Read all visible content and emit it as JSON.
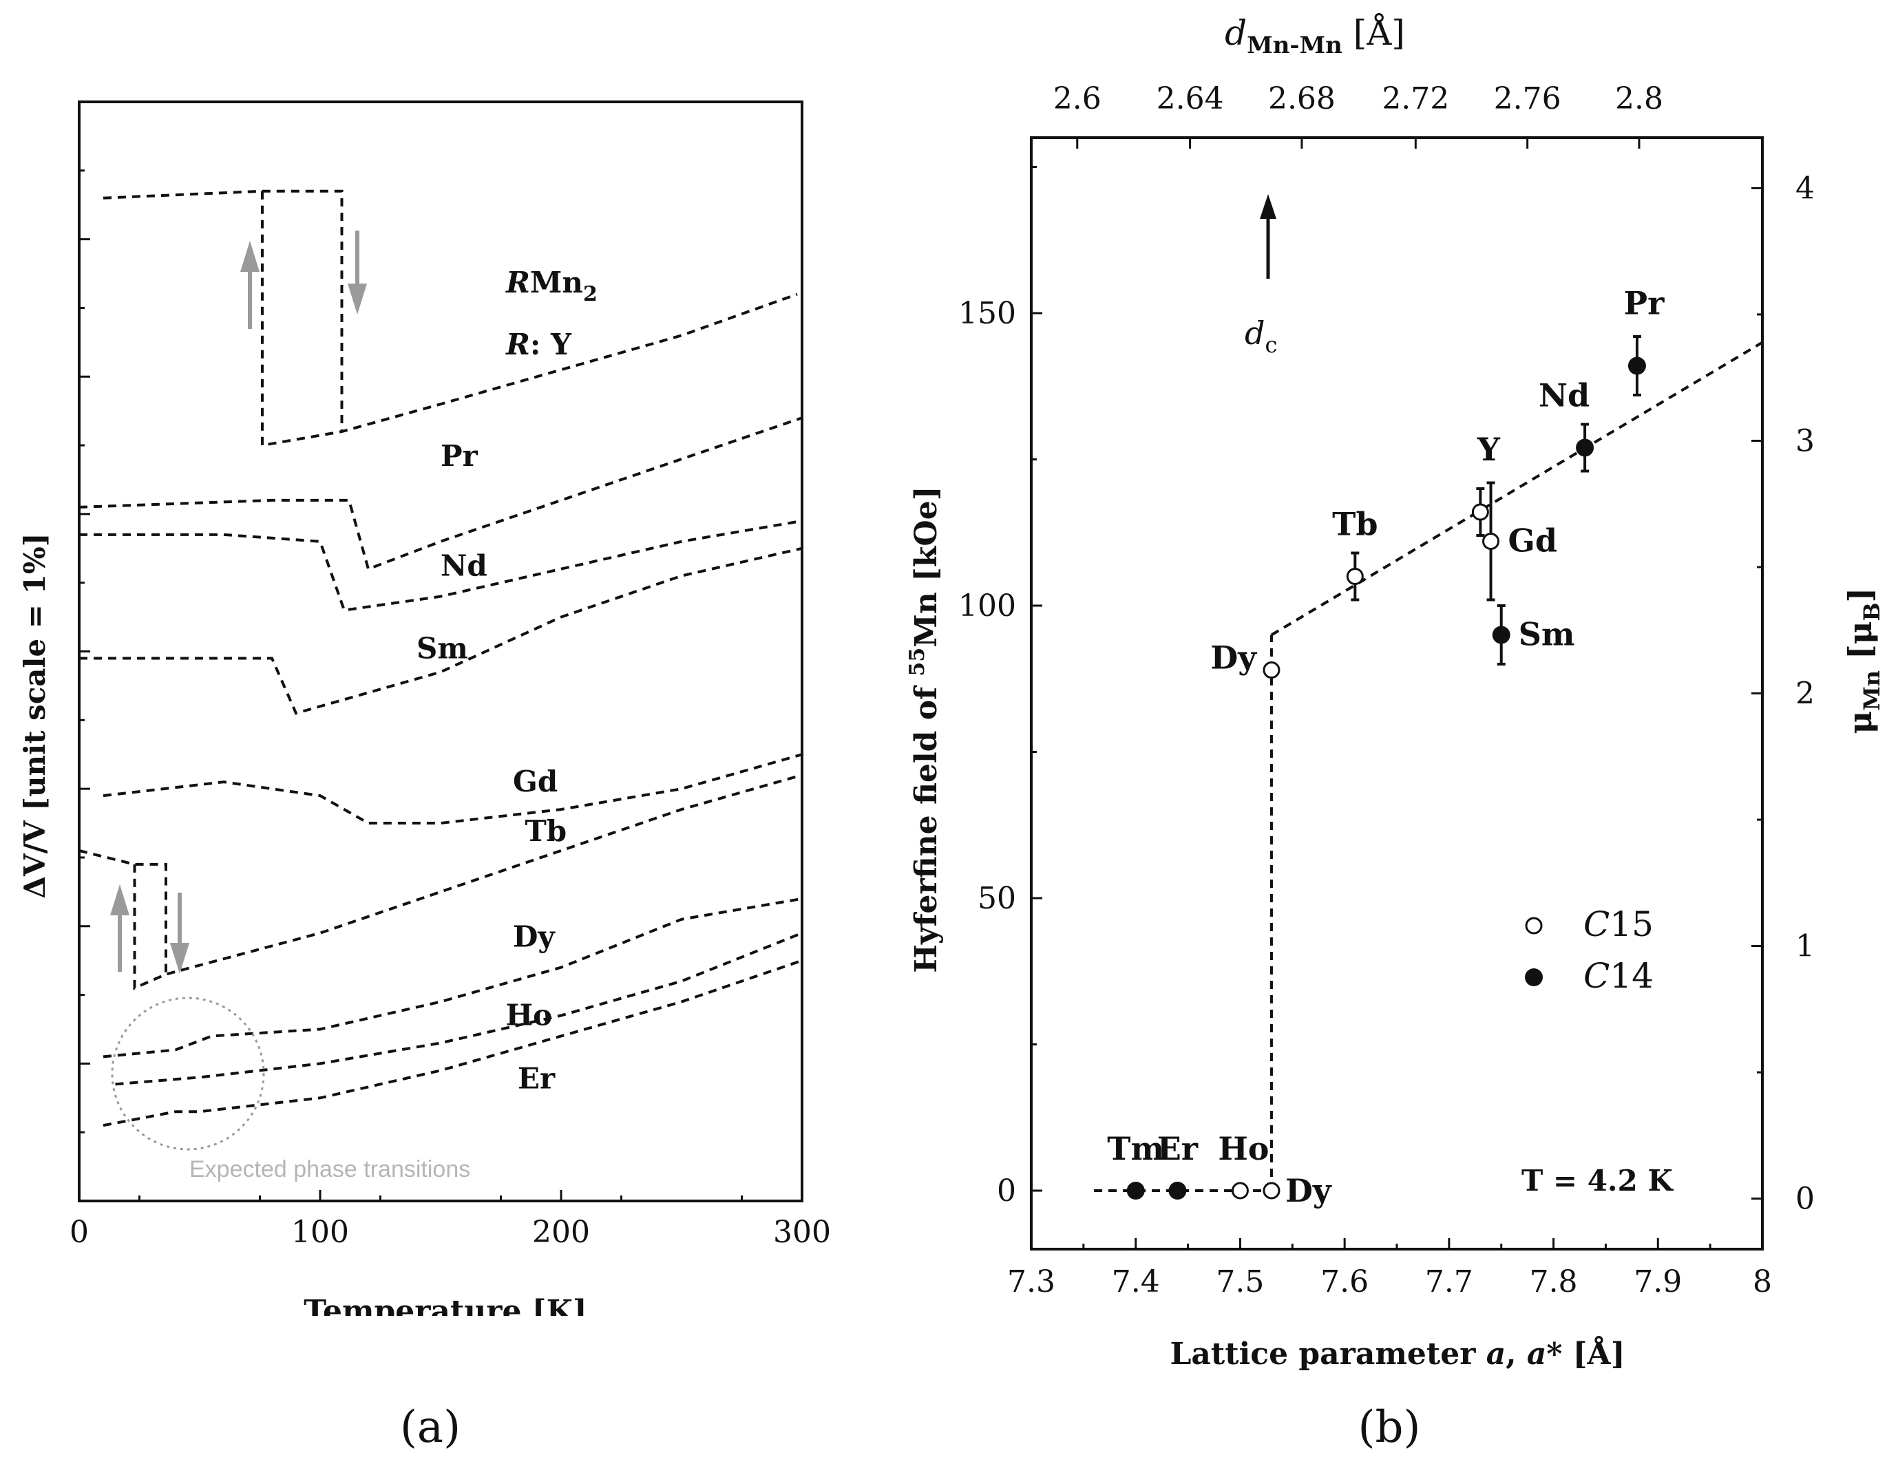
{
  "panel_a": {
    "caption": "(a)",
    "annotation": "Expected phase transitions"
  },
  "panel_b": {
    "caption": "(b)",
    "dc_label": "d",
    "dc_sub": "c",
    "top_axis_label": "d",
    "top_axis_sub": "Mn-Mn",
    "top_axis_unit": " [Å]",
    "left_axis_pre": "Hyferfine field of ",
    "left_axis_sup": "55",
    "left_axis_post": "Mn [kOe]",
    "right_axis_main": "μ",
    "right_axis_sub": "Mn",
    "right_axis_unit": " [μ",
    "right_axis_unit_sub": "B",
    "right_axis_close": "]",
    "bottom_axis_pre": "Lattice parameter ",
    "bottom_axis_var": "a",
    "bottom_axis_mid": ", ",
    "bottom_axis_var2": "a",
    "bottom_axis_post": "* [Å]",
    "temperature_note": "T = 4.2 K",
    "legend": [
      {
        "label_italic": "C",
        "label_rest": "15",
        "marker": "open"
      },
      {
        "label_italic": "C",
        "label_rest": "14",
        "marker": "filled"
      }
    ]
  },
  "chart_data": [
    {
      "type": "line",
      "title": "",
      "xlabel": "Temperature [K]",
      "ylabel": "ΔV/V [unit scale = 1%]",
      "xlim": [
        0,
        300
      ],
      "ylim": [
        0,
        8
      ],
      "x_ticks": [
        "0",
        "100",
        "200",
        "300"
      ],
      "series_header": {
        "italic": "R",
        "rest": "Mn",
        "sub": "2"
      },
      "series_header_2": {
        "italic": "R",
        "rest": ": Y"
      },
      "series": [
        {
          "name": "Y",
          "label": "",
          "x": [
            10,
            50,
            80,
            110,
            150,
            200,
            250,
            298
          ],
          "y": [
            7.3,
            7.35,
            7.4,
            5.6,
            5.8,
            6.05,
            6.3,
            6.6
          ],
          "hysteresis_K": [
            76,
            109
          ]
        },
        {
          "name": "Pr",
          "label": "Pr",
          "x": [
            0,
            80,
            112,
            120,
            150,
            200,
            250,
            300
          ],
          "y": [
            5.05,
            5.1,
            5.1,
            4.6,
            4.8,
            5.1,
            5.4,
            5.7
          ]
        },
        {
          "name": "Nd",
          "label": "Nd",
          "x": [
            0,
            60,
            100,
            110,
            150,
            200,
            250,
            300
          ],
          "y": [
            4.85,
            4.85,
            4.8,
            4.3,
            4.4,
            4.6,
            4.8,
            4.95
          ]
        },
        {
          "name": "Sm",
          "label": "Sm",
          "x": [
            0,
            80,
            90,
            100,
            150,
            200,
            250,
            300
          ],
          "y": [
            3.95,
            3.95,
            3.55,
            3.6,
            3.85,
            4.25,
            4.55,
            4.75
          ]
        },
        {
          "name": "Gd",
          "label": "Gd",
          "x": [
            10,
            60,
            100,
            120,
            150,
            200,
            250,
            300
          ],
          "y": [
            2.95,
            3.05,
            2.95,
            2.75,
            2.75,
            2.85,
            3.0,
            3.25
          ]
        },
        {
          "name": "Tb",
          "label": "Tb",
          "x": [
            0,
            25,
            35,
            40,
            100,
            150,
            200,
            250,
            300
          ],
          "y": [
            2.55,
            2.45,
            1.6,
            1.65,
            1.95,
            2.25,
            2.55,
            2.85,
            3.1
          ],
          "hysteresis_K": [
            23,
            36
          ]
        },
        {
          "name": "Dy",
          "label": "Dy",
          "x": [
            10,
            40,
            55,
            100,
            150,
            200,
            250,
            300
          ],
          "y": [
            1.05,
            1.1,
            1.2,
            1.25,
            1.45,
            1.7,
            2.05,
            2.2
          ]
        },
        {
          "name": "Ho",
          "label": "Ho",
          "x": [
            15,
            50,
            100,
            150,
            200,
            250,
            300
          ],
          "y": [
            0.85,
            0.9,
            1.0,
            1.15,
            1.35,
            1.6,
            1.95
          ]
        },
        {
          "name": "Er",
          "label": "Er",
          "x": [
            10,
            40,
            50,
            100,
            150,
            200,
            250,
            300
          ],
          "y": [
            0.55,
            0.65,
            0.65,
            0.75,
            0.95,
            1.2,
            1.45,
            1.75
          ]
        }
      ]
    },
    {
      "type": "scatter",
      "title": "",
      "xlabel": "Lattice parameter a, a* [Å]",
      "ylabel": "Hyferfine field of 55Mn [kOe]",
      "y2label": "μMn [μB]",
      "x2label": "dMn-Mn [Å]",
      "xlim": [
        7.3,
        8.0
      ],
      "ylim": [
        -10,
        180
      ],
      "y2lim": [
        -0.2,
        4.2
      ],
      "x_ticks": [
        "7.3",
        "7.4",
        "7.5",
        "7.6",
        "7.7",
        "7.8",
        "7.9",
        "8"
      ],
      "y_ticks": [
        "0",
        "50",
        "100",
        "150"
      ],
      "y2_ticks": [
        "0",
        "1",
        "2",
        "3",
        "4"
      ],
      "x2_ticks": [
        "2.6",
        "2.64",
        "2.68",
        "2.72",
        "2.76",
        "2.8"
      ],
      "x2_tick_positions_a": [
        7.344,
        7.452,
        7.559,
        7.668,
        7.775,
        7.882
      ],
      "dc_position_a": 7.53,
      "points": [
        {
          "label": "Tm",
          "x": 7.4,
          "y": 0,
          "structure": "C14",
          "err": 0
        },
        {
          "label": "Er",
          "x": 7.44,
          "y": 0,
          "structure": "C14",
          "err": 0
        },
        {
          "label": "Ho",
          "x": 7.5,
          "y": 0,
          "structure": "C15",
          "err": 0
        },
        {
          "label": "Dy",
          "x": 7.53,
          "y": 0,
          "structure": "C15",
          "err": 0
        },
        {
          "label": "Dy",
          "x": 7.53,
          "y": 89,
          "structure": "C15",
          "err": 0
        },
        {
          "label": "Tb",
          "x": 7.61,
          "y": 105,
          "structure": "C15",
          "err": 4
        },
        {
          "label": "Y",
          "x": 7.73,
          "y": 116,
          "structure": "C15",
          "err": 4
        },
        {
          "label": "Gd",
          "x": 7.74,
          "y": 111,
          "structure": "C15",
          "err": 10
        },
        {
          "label": "Sm",
          "x": 7.75,
          "y": 95,
          "structure": "C14",
          "err": 5
        },
        {
          "label": "Nd",
          "x": 7.83,
          "y": 127,
          "structure": "C14",
          "err": 4
        },
        {
          "label": "Pr",
          "x": 7.88,
          "y": 141,
          "structure": "C14",
          "err": 5
        }
      ],
      "fit_line": {
        "x": [
          7.53,
          8.0
        ],
        "y": [
          95,
          145
        ]
      },
      "low_line": {
        "x": [
          7.36,
          7.53
        ],
        "y": [
          0,
          0
        ]
      }
    }
  ]
}
